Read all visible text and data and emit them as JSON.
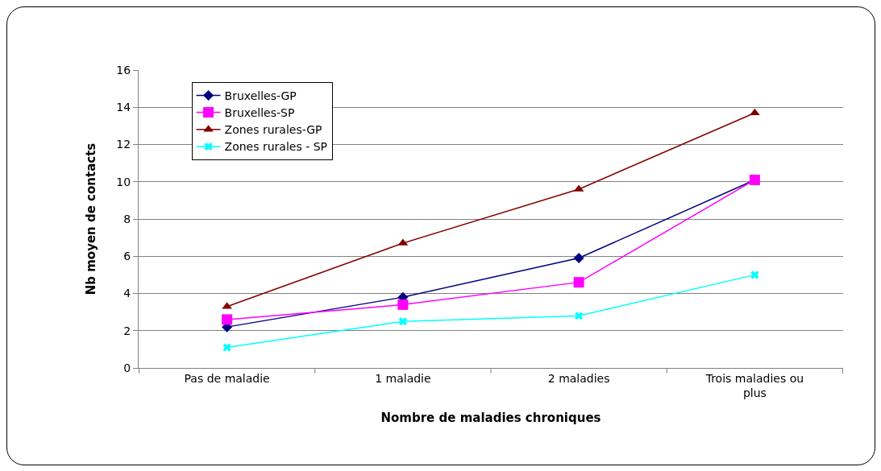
{
  "chart_data": {
    "type": "line",
    "xlabel": "Nombre de maladies chroniques",
    "ylabel": "Nb moyen de contacts",
    "categories": [
      "Pas de maladie",
      "1 maladie",
      "2 maladies",
      "Trois maladies ou plus"
    ],
    "series": [
      {
        "name": "Bruxelles-GP",
        "color": "#000080",
        "marker": "diamond",
        "values": [
          2.2,
          3.8,
          5.9,
          10.1
        ]
      },
      {
        "name": "Bruxelles-SP",
        "color": "#ff00ff",
        "marker": "square",
        "values": [
          2.6,
          3.4,
          4.6,
          10.1
        ]
      },
      {
        "name": "Zones rurales-GP",
        "color": "#800000",
        "marker": "triangle",
        "values": [
          3.3,
          6.7,
          9.6,
          13.7
        ]
      },
      {
        "name": "Zones rurales - SP",
        "color": "#00ffff",
        "marker": "cross",
        "values": [
          1.1,
          2.5,
          2.8,
          5
        ]
      }
    ],
    "ylim": [
      0,
      16
    ],
    "yticks": [
      0,
      2,
      4,
      6,
      8,
      10,
      12,
      14,
      16
    ],
    "grid": "y",
    "legend": "top left",
    "line_style": "solid"
  }
}
